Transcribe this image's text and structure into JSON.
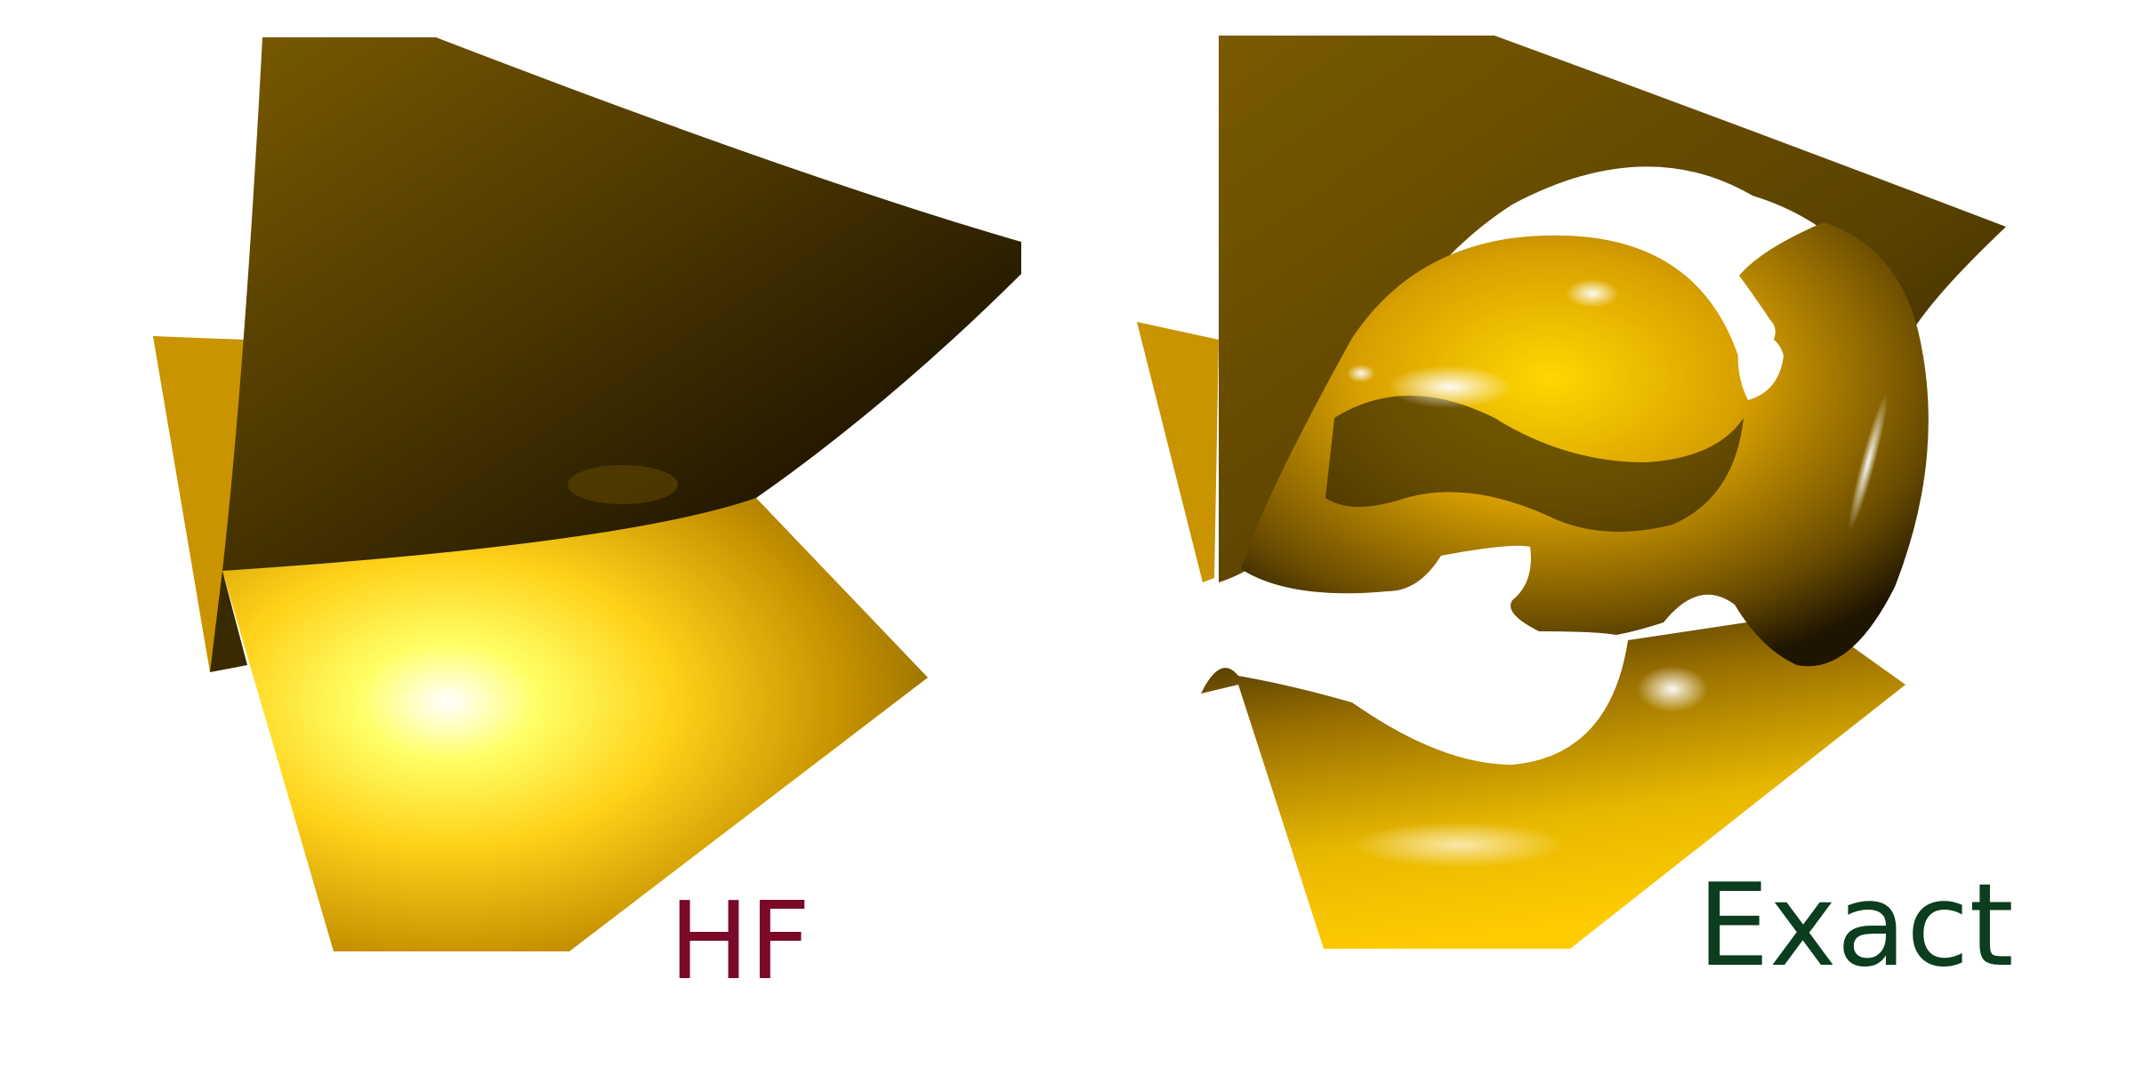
{
  "panels": {
    "left": {
      "label": "HF",
      "label_color": "#7a0a28"
    },
    "right": {
      "label": "Exact",
      "label_color": "#0b3d1e"
    }
  },
  "colors": {
    "gold_light": "#ffe94a",
    "gold_mid": "#e0a800",
    "gold_dark": "#7a5a00",
    "shadow": "#1a1200",
    "highlight": "#ffffff",
    "background": "#ffffff"
  }
}
